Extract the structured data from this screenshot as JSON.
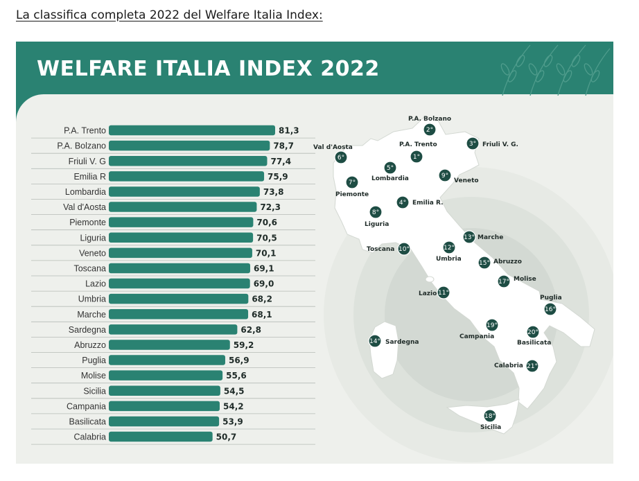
{
  "page": {
    "heading": "La classifica completa 2022 del Welfare Italia Index:"
  },
  "infographic": {
    "title": "WELFARE ITALIA INDEX 2022",
    "colors": {
      "accent": "#2a8272",
      "bar": "#2a8272",
      "panel": "#eef0ec",
      "map_land": "#ffffff",
      "marker": "#1e4d44"
    }
  },
  "chart_data": {
    "type": "bar",
    "orientation": "horizontal",
    "categories": [
      "P.A. Trento",
      "P.A. Bolzano",
      "Friuli V. G",
      "Emilia R",
      "Lombardia",
      "Val d'Aosta",
      "Piemonte",
      "Liguria",
      "Veneto",
      "Toscana",
      "Lazio",
      "Umbria",
      "Marche",
      "Sardegna",
      "Abruzzo",
      "Puglia",
      "Molise",
      "Sicilia",
      "Campania",
      "Basilicata",
      "Calabria"
    ],
    "values": [
      81.3,
      78.7,
      77.4,
      75.9,
      73.8,
      72.3,
      70.6,
      70.5,
      70.1,
      69.1,
      69.0,
      68.2,
      68.1,
      62.8,
      59.2,
      56.9,
      55.6,
      54.5,
      54.2,
      53.9,
      50.7
    ],
    "value_labels": [
      "81,3",
      "78,7",
      "77,4",
      "75,9",
      "73,8",
      "72,3",
      "70,6",
      "70,5",
      "70,1",
      "69,1",
      "69,0",
      "68,2",
      "68,1",
      "62,8",
      "59,2",
      "56,9",
      "55,6",
      "54,5",
      "54,2",
      "53,9",
      "50,7"
    ],
    "title": "WELFARE ITALIA INDEX 2022",
    "xlabel": "",
    "ylabel": "",
    "xlim": [
      0,
      81.3
    ],
    "grid": false,
    "legend": "none"
  },
  "map": {
    "regions": [
      {
        "name": "P.A. Bolzano",
        "rank": "2°"
      },
      {
        "name": "P.A. Trento",
        "rank": "1°"
      },
      {
        "name": "Friuli V. G.",
        "rank": "3°"
      },
      {
        "name": "Val d'Aosta",
        "rank": "6°"
      },
      {
        "name": "Lombardia",
        "rank": "5°"
      },
      {
        "name": "Veneto",
        "rank": "9°"
      },
      {
        "name": "Piemonte",
        "rank": "7°"
      },
      {
        "name": "Emilia R.",
        "rank": "4°"
      },
      {
        "name": "Liguria",
        "rank": "8°"
      },
      {
        "name": "Marche",
        "rank": "13°"
      },
      {
        "name": "Toscana",
        "rank": "10°"
      },
      {
        "name": "Umbria",
        "rank": "12°"
      },
      {
        "name": "Abruzzo",
        "rank": "15°"
      },
      {
        "name": "Molise",
        "rank": "17°"
      },
      {
        "name": "Lazio",
        "rank": "11°"
      },
      {
        "name": "Puglia",
        "rank": "16°"
      },
      {
        "name": "Campania",
        "rank": "19°"
      },
      {
        "name": "Basilicata",
        "rank": "20°"
      },
      {
        "name": "Sardegna",
        "rank": "14°"
      },
      {
        "name": "Calabria",
        "rank": "21°"
      },
      {
        "name": "Sicilia",
        "rank": "18°"
      }
    ]
  }
}
